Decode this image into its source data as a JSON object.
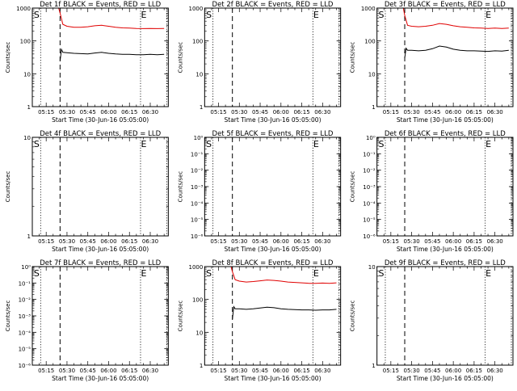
{
  "figure": {
    "colors": {
      "events": "#000000",
      "lld": "#e00000",
      "frame": "#000000"
    },
    "start_label": "S",
    "end_label": "E",
    "xlabel": "Start Time (30-Jun-16 05:05:00)",
    "ylabel": "Counts/sec"
  },
  "chart_data": [
    {
      "type": "line",
      "title": "Det 1f BLACK = Events, RED = LLD",
      "xlabel": "Start Time (30-Jun-16 05:05:00)",
      "ylabel": "Counts/sec",
      "x_ticks": [
        "05:15",
        "05:30",
        "05:45",
        "06:00",
        "06:15",
        "06:30"
      ],
      "y_scale": "log",
      "y_ticks": [
        "1",
        "10",
        "100",
        "1000"
      ],
      "ylim": [
        1,
        1000
      ],
      "markers": {
        "S": "05:11",
        "E": "06:23"
      },
      "series": [
        {
          "key": "lld",
          "x": [
            "05:24",
            "05:25",
            "05:27",
            "05:30",
            "05:35",
            "05:40",
            "05:45",
            "05:50",
            "05:55",
            "06:00",
            "06:05",
            "06:10",
            "06:15",
            "06:20",
            "06:25",
            "06:30",
            "06:35",
            "06:40"
          ],
          "y": [
            1000,
            700,
            320,
            280,
            260,
            260,
            270,
            290,
            300,
            280,
            260,
            250,
            245,
            240,
            238,
            240,
            238,
            240
          ]
        },
        {
          "key": "events",
          "x": [
            "05:25",
            "05:26",
            "05:27",
            "05:30",
            "05:35",
            "05:40",
            "05:45",
            "05:50",
            "05:55",
            "06:00",
            "06:05",
            "06:10",
            "06:15",
            "06:20",
            "06:25",
            "06:30",
            "06:35",
            "06:40"
          ],
          "y": [
            25,
            55,
            45,
            44,
            42,
            41,
            40,
            43,
            45,
            42,
            40,
            39,
            39,
            38,
            38,
            39,
            38,
            39
          ]
        }
      ]
    },
    {
      "type": "line",
      "title": "Det 2f BLACK = Events, RED = LLD",
      "xlabel": "Start Time (30-Jun-16 05:05:00)",
      "ylabel": "Counts/sec",
      "x_ticks": [
        "05:15",
        "05:30",
        "05:45",
        "06:00",
        "06:15",
        "06:30"
      ],
      "y_scale": "log",
      "y_ticks": [
        "1",
        "10",
        "100",
        "1000"
      ],
      "ylim": [
        1,
        1000
      ],
      "markers": {
        "S": "05:11",
        "E": "06:23"
      },
      "series": []
    },
    {
      "type": "line",
      "title": "Det 3f BLACK = Events, RED = LLD",
      "xlabel": "Start Time (30-Jun-16 05:05:00)",
      "ylabel": "Counts/sec",
      "x_ticks": [
        "05:15",
        "05:30",
        "05:45",
        "06:00",
        "06:15",
        "06:30"
      ],
      "y_scale": "log",
      "y_ticks": [
        "1",
        "10",
        "100",
        "1000"
      ],
      "ylim": [
        1,
        1000
      ],
      "markers": {
        "S": "05:11",
        "E": "06:23"
      },
      "series": [
        {
          "key": "lld",
          "x": [
            "05:24",
            "05:25",
            "05:27",
            "05:30",
            "05:35",
            "05:40",
            "05:45",
            "05:50",
            "05:55",
            "06:00",
            "06:05",
            "06:10",
            "06:15",
            "06:20",
            "06:25",
            "06:30",
            "06:35",
            "06:40"
          ],
          "y": [
            1000,
            600,
            300,
            280,
            270,
            280,
            300,
            340,
            320,
            290,
            270,
            260,
            250,
            245,
            240,
            245,
            240,
            245
          ]
        },
        {
          "key": "events",
          "x": [
            "05:25",
            "05:26",
            "05:27",
            "05:30",
            "05:35",
            "05:40",
            "05:45",
            "05:50",
            "05:55",
            "06:00",
            "06:05",
            "06:10",
            "06:15",
            "06:20",
            "06:25",
            "06:30",
            "06:35",
            "06:40"
          ],
          "y": [
            30,
            60,
            52,
            52,
            50,
            52,
            58,
            70,
            65,
            56,
            52,
            50,
            50,
            49,
            48,
            50,
            49,
            52
          ]
        }
      ]
    },
    {
      "type": "line",
      "title": "Det 4f BLACK = Events, RED = LLD",
      "xlabel": "Start Time (30-Jun-16 05:05:00)",
      "ylabel": "Counts/sec",
      "x_ticks": [
        "05:15",
        "05:30",
        "05:45",
        "06:00",
        "06:15",
        "06:30"
      ],
      "y_scale": "log",
      "y_ticks": [
        "1",
        "10"
      ],
      "ylim": [
        1,
        10
      ],
      "markers": {
        "S": "05:11",
        "E": "06:23"
      },
      "series": []
    },
    {
      "type": "line",
      "title": "Det 5f BLACK = Events, RED = LLD",
      "xlabel": "Start Time (30-Jun-16 05:05:00)",
      "ylabel": "Counts/sec",
      "x_ticks": [
        "05:15",
        "05:30",
        "05:45",
        "06:00",
        "06:15",
        "06:30"
      ],
      "y_scale": "log",
      "y_ticks": [
        "10⁰",
        "10⁻¹",
        "10⁻²",
        "10⁻³",
        "10⁻⁴",
        "10⁻⁵",
        "10⁻⁶"
      ],
      "ylim": [
        1e-06,
        1
      ],
      "markers": {
        "S": "05:11",
        "E": "06:23"
      },
      "series": []
    },
    {
      "type": "line",
      "title": "Det 6f BLACK = Events, RED = LLD",
      "xlabel": "Start Time (30-Jun-16 05:05:00)",
      "ylabel": "Counts/sec",
      "x_ticks": [
        "05:15",
        "05:30",
        "05:45",
        "06:00",
        "06:15",
        "06:30"
      ],
      "y_scale": "log",
      "y_ticks": [
        "10⁰",
        "10⁻¹",
        "10⁻²",
        "10⁻³",
        "10⁻⁴",
        "10⁻⁵",
        "10⁻⁶"
      ],
      "ylim": [
        1e-06,
        1
      ],
      "markers": {
        "S": "05:11",
        "E": "06:23"
      },
      "series": []
    },
    {
      "type": "line",
      "title": "Det 7f BLACK = Events, RED = LLD",
      "xlabel": "Start Time (30-Jun-16 05:05:00)",
      "ylabel": "Counts/sec",
      "x_ticks": [
        "05:15",
        "05:30",
        "05:45",
        "06:00",
        "06:15",
        "06:30"
      ],
      "y_scale": "log",
      "y_ticks": [
        "10⁰",
        "10⁻¹",
        "10⁻²",
        "10⁻³",
        "10⁻⁴",
        "10⁻⁵",
        "10⁻⁶"
      ],
      "ylim": [
        1e-06,
        1
      ],
      "markers": {
        "S": "05:11",
        "E": "06:23"
      },
      "series": []
    },
    {
      "type": "line",
      "title": "Det 8f BLACK = Events, RED = LLD",
      "xlabel": "Start Time (30-Jun-16 05:05:00)",
      "ylabel": "Counts/sec",
      "x_ticks": [
        "05:15",
        "05:30",
        "05:45",
        "06:00",
        "06:15",
        "06:30"
      ],
      "y_scale": "log",
      "y_ticks": [
        "1",
        "10",
        "100",
        "1000"
      ],
      "ylim": [
        1,
        1000
      ],
      "markers": {
        "S": "05:11",
        "E": "06:23"
      },
      "series": [
        {
          "key": "lld",
          "x": [
            "05:24",
            "05:25",
            "05:27",
            "05:30",
            "05:35",
            "05:40",
            "05:45",
            "05:50",
            "05:55",
            "06:00",
            "06:05",
            "06:10",
            "06:15",
            "06:20",
            "06:25",
            "06:30",
            "06:35",
            "06:40"
          ],
          "y": [
            1000,
            700,
            400,
            360,
            340,
            350,
            370,
            390,
            380,
            360,
            340,
            330,
            320,
            310,
            310,
            315,
            310,
            320
          ]
        },
        {
          "key": "events",
          "x": [
            "05:25",
            "05:26",
            "05:27",
            "05:30",
            "05:35",
            "05:40",
            "05:45",
            "05:50",
            "05:55",
            "06:00",
            "06:05",
            "06:10",
            "06:15",
            "06:20",
            "06:25",
            "06:30",
            "06:35",
            "06:40"
          ],
          "y": [
            25,
            60,
            52,
            52,
            50,
            52,
            55,
            58,
            56,
            52,
            50,
            49,
            48,
            48,
            47,
            48,
            48,
            50
          ]
        }
      ]
    },
    {
      "type": "line",
      "title": "Det 9f BLACK = Events, RED = LLD",
      "xlabel": "Start Time (30-Jun-16 05:05:00)",
      "ylabel": "Counts/sec",
      "x_ticks": [
        "05:15",
        "05:30",
        "05:45",
        "06:00",
        "06:15",
        "06:30"
      ],
      "y_scale": "log",
      "y_ticks": [
        "1",
        "10"
      ],
      "ylim": [
        1,
        10
      ],
      "markers": {
        "S": "05:11",
        "E": "06:23"
      },
      "series": []
    }
  ]
}
